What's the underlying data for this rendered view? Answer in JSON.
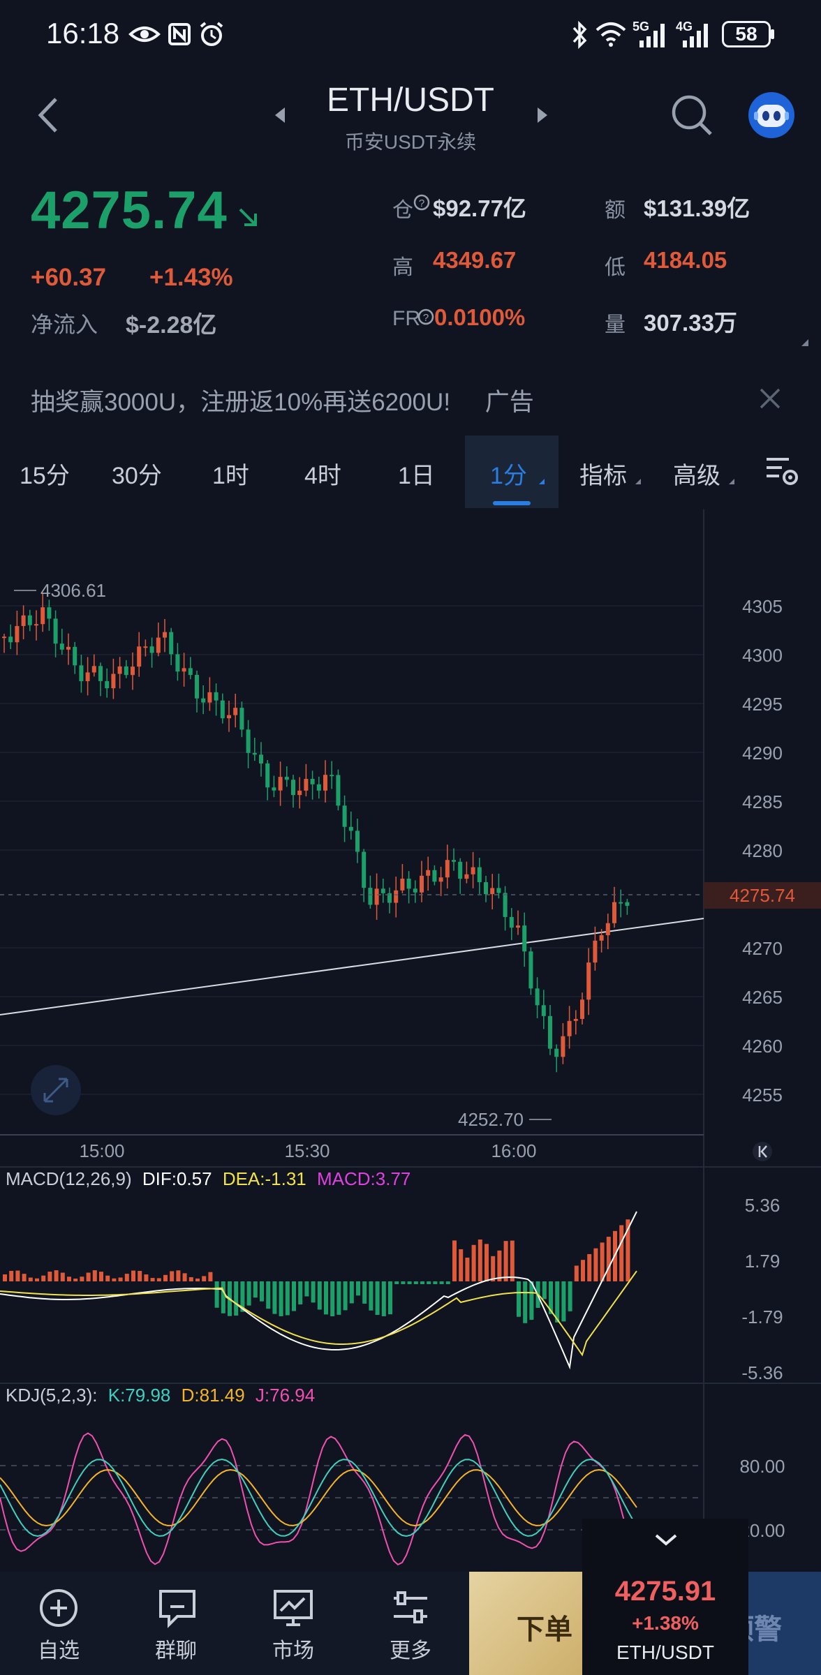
{
  "status_bar": {
    "time": "16:18",
    "icons": [
      "eye-icon",
      "nfc-icon",
      "alarm-icon",
      "bluetooth-icon",
      "wifi-icon",
      "signal-5g-icon",
      "signal-4g-icon"
    ],
    "network_5g": "5G",
    "network_4g": "4G",
    "battery": "58"
  },
  "header": {
    "pair": "ETH/USDT",
    "subtitle": "币安USDT永续"
  },
  "ticker": {
    "last_price": "4275.74",
    "change_abs": "+60.37",
    "change_pct": "+1.43%",
    "net_inflow_label": "净流入",
    "net_inflow_value": "$-2.28亿",
    "open_interest_label": "仓",
    "open_interest_value": "$92.77亿",
    "turnover_label": "额",
    "turnover_value": "$131.39亿",
    "high_label": "高",
    "high_value": "4349.67",
    "low_label": "低",
    "low_value": "4184.05",
    "funding_label": "FR",
    "funding_value": "0.0100%",
    "volume_label": "量",
    "volume_value": "307.33万"
  },
  "ad": {
    "text": "抽奖赢3000U，注册返10%再送6200U!",
    "tag": "广告"
  },
  "tabs": [
    {
      "label": "15分"
    },
    {
      "label": "30分"
    },
    {
      "label": "1时"
    },
    {
      "label": "4时"
    },
    {
      "label": "1日"
    },
    {
      "label": "1分",
      "active": true
    },
    {
      "label": "指标"
    },
    {
      "label": "高级"
    }
  ],
  "chart": {
    "max_label": "4306.61",
    "min_label": "4252.70",
    "price_tag": "4275.74",
    "y_ticks": [
      "4305",
      "4300",
      "4295",
      "4290",
      "4285",
      "4280",
      "4270",
      "4265",
      "4260",
      "4255"
    ],
    "x_ticks": [
      "15:00",
      "15:30",
      "16:00"
    ],
    "macd_label": "MACD(12,26,9)",
    "macd_dif": "DIF:0.57",
    "macd_dea": "DEA:-1.31",
    "macd_macd": "MACD:3.77",
    "macd_ticks": [
      "5.36",
      "1.79",
      "-1.79",
      "-5.36"
    ],
    "kdj_label": "KDJ(5,2,3):",
    "kdj_k": "K:79.98",
    "kdj_d": "D:81.49",
    "kdj_j": "J:76.94",
    "kdj_ticks": [
      "80.00",
      "20.00"
    ]
  },
  "colors": {
    "up": "#e05a3a",
    "down": "#1ca06a",
    "accent": "#2a7de1",
    "dif": "#ffffff",
    "dea": "#f2e24a",
    "macd": "#e040e0",
    "kdj_k": "#3fd0c0",
    "kdj_d": "#f5b428",
    "kdj_j": "#f050b0"
  },
  "bottom_nav": [
    {
      "label": "自选",
      "icon": "add-circle-icon"
    },
    {
      "label": "群聊",
      "icon": "chat-icon"
    },
    {
      "label": "市场",
      "icon": "market-chart-icon"
    },
    {
      "label": "更多",
      "icon": "more-settings-icon"
    }
  ],
  "actions": {
    "order": "下单",
    "alert": "预警"
  },
  "mini_ticker": {
    "price": "4275.91",
    "change": "+1.38%",
    "pair": "ETH/USDT"
  }
}
